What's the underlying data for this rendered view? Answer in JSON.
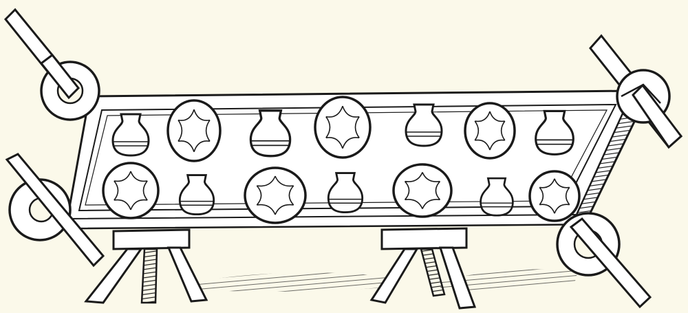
{
  "image": {
    "subject": "carried-tray-with-vessels-and-dishes",
    "colors": {
      "paper": "#fbf9ea",
      "ink": "#1a1a1a",
      "fill": "#ffffff"
    },
    "counts": {
      "vessels": 7,
      "dishes": 7,
      "poles": 4,
      "rings": 4,
      "stools": 2
    }
  }
}
